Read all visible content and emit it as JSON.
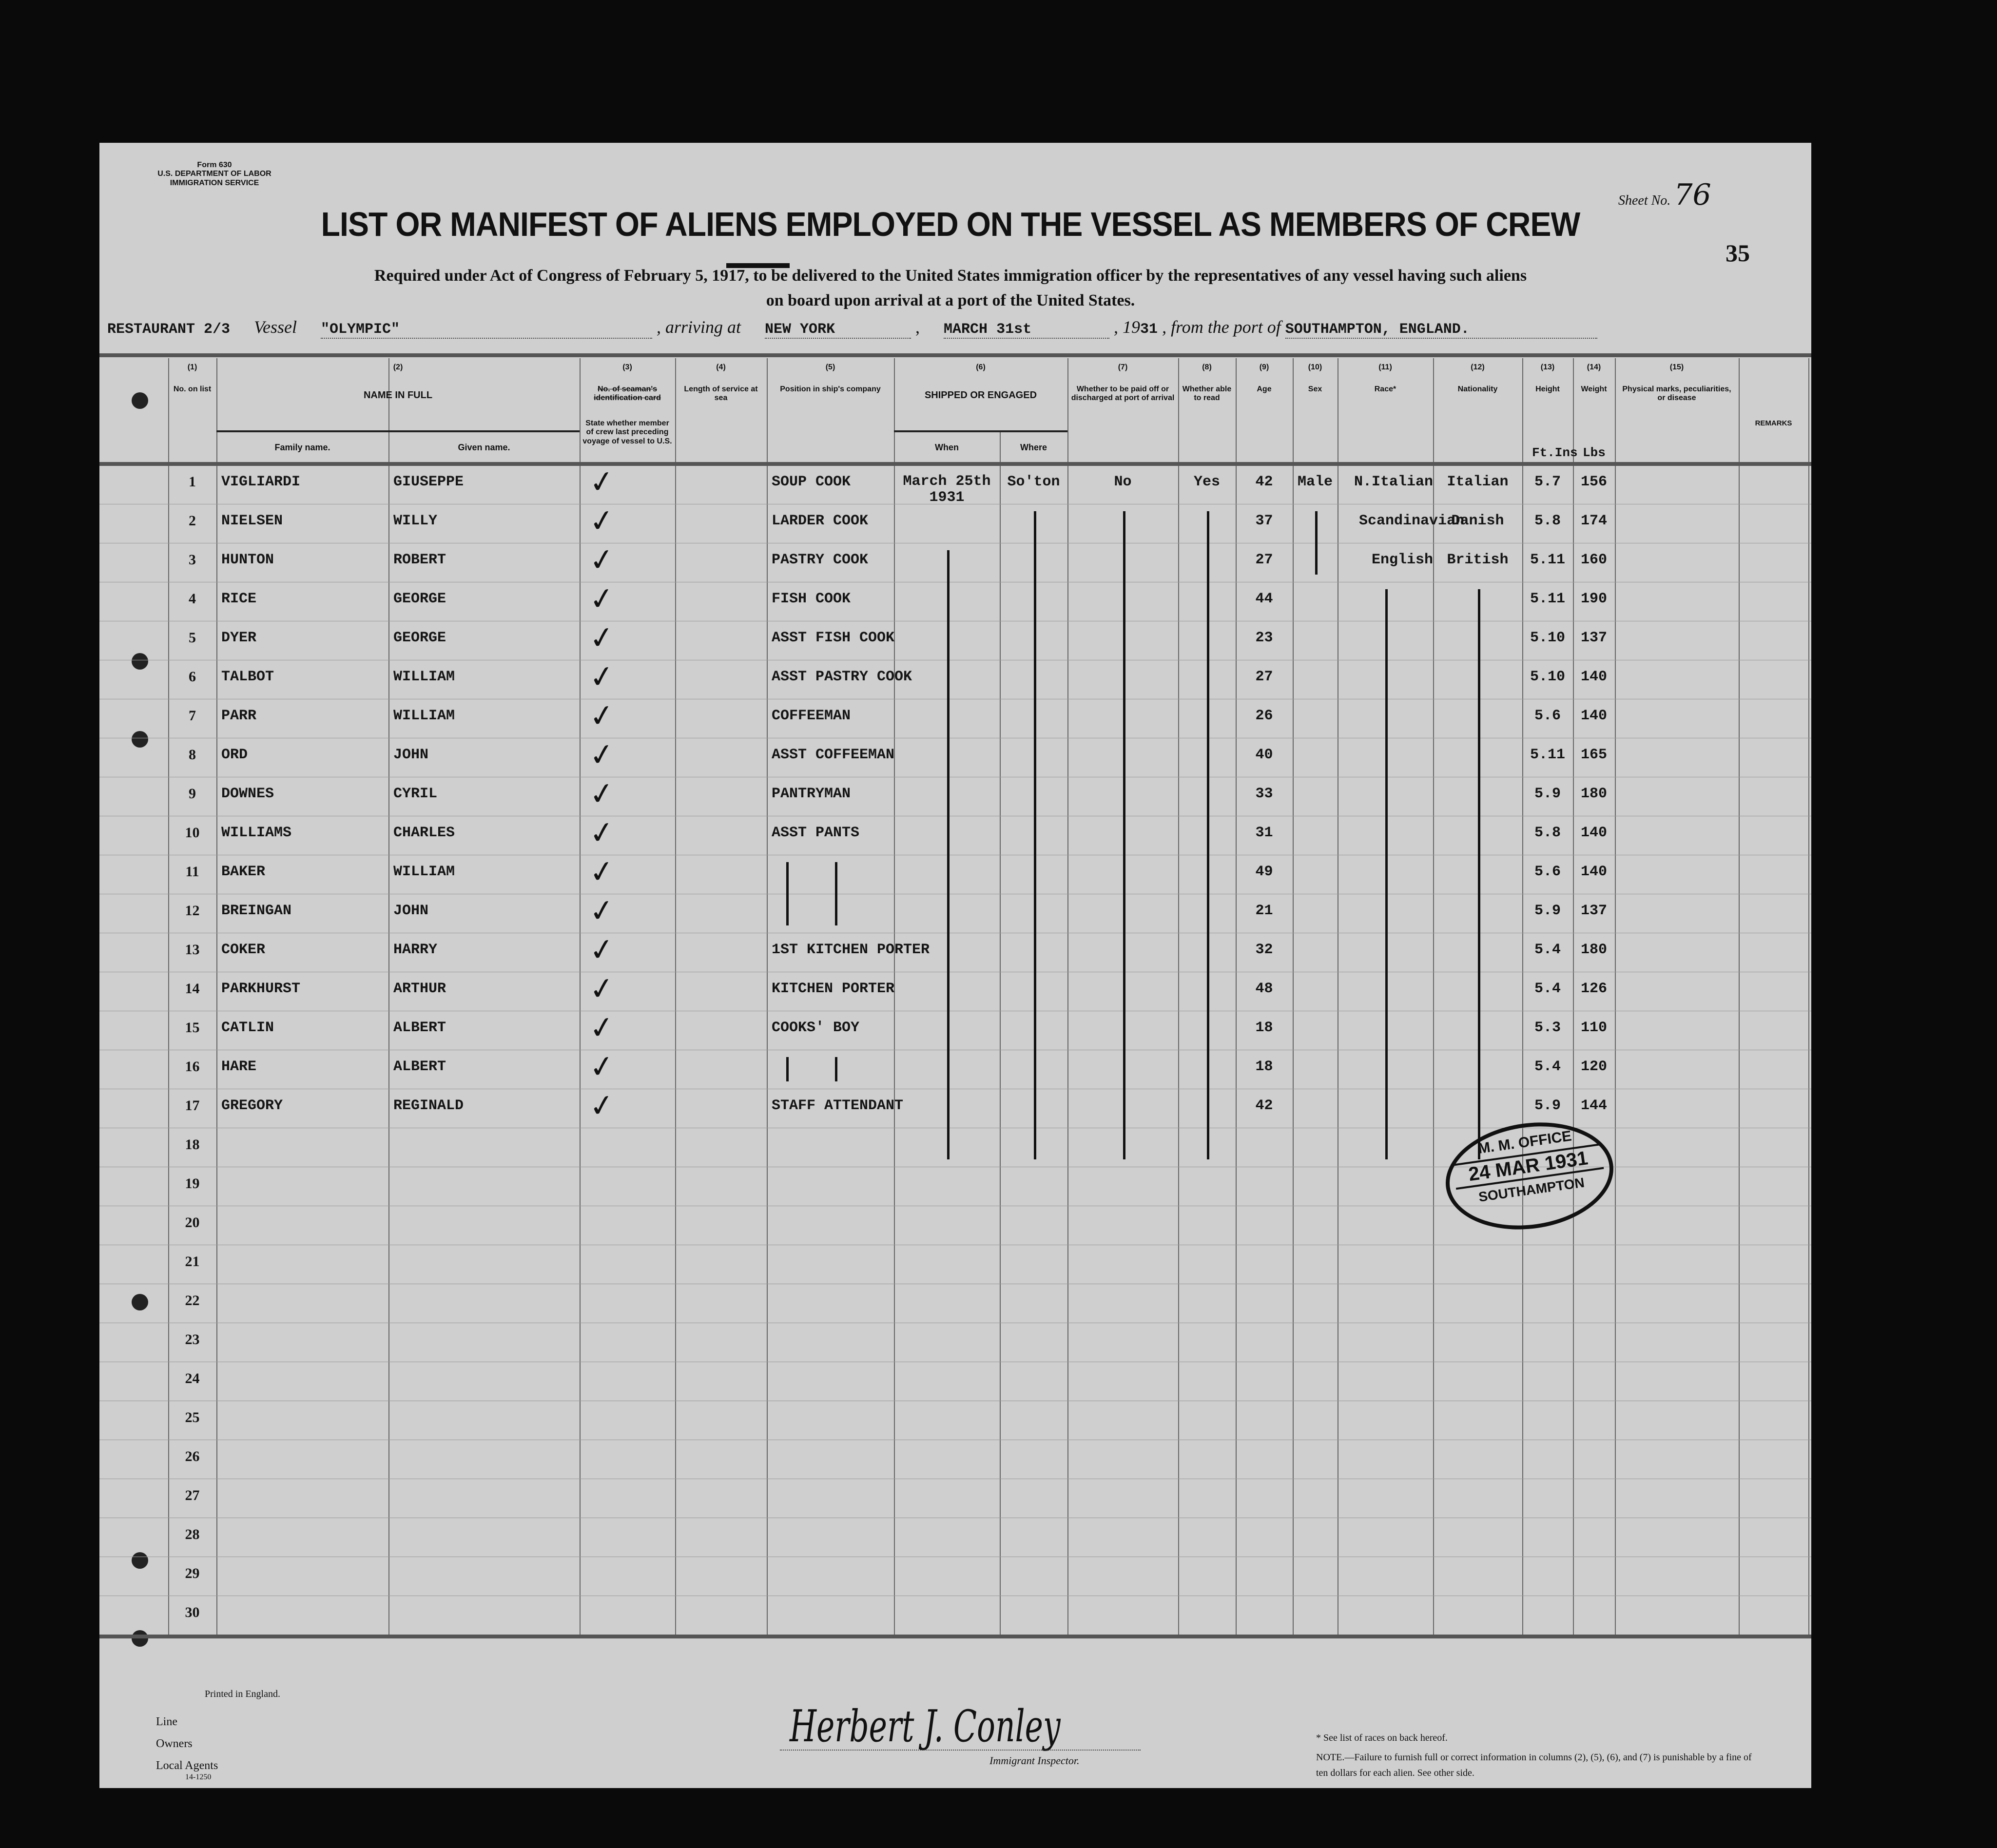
{
  "form": {
    "form_no": "Form 630",
    "department": "U.S. DEPARTMENT OF LABOR",
    "service": "IMMIGRATION SERVICE",
    "title": "LIST OR MANIFEST OF ALIENS EMPLOYED ON THE VESSEL AS MEMBERS OF CREW",
    "subtitle_1": "Required under Act of Congress of February 5, 1917, to be delivered to the United States immigration officer by the representatives of any vessel having such aliens",
    "subtitle_2": "on board upon arrival at a port of the United States.",
    "sheet_label": "Sheet No.",
    "sheet_no": "76",
    "page_stamp": "35"
  },
  "voyage": {
    "department": "RESTAURANT 2/3",
    "vessel_label": "Vessel",
    "vessel": "\"OLYMPIC\"",
    "arriving_label": ", arriving at",
    "port": "NEW YORK",
    "date": "MARCH 31st",
    "year_prefix": ", 19",
    "year": "31",
    "from_label": ", from the port of",
    "from_port": "SOUTHAMPTON, ENGLAND."
  },
  "columns": {
    "c1": {
      "num": "(1)",
      "label": "No. on list"
    },
    "c2": {
      "num": "(2)",
      "label": "NAME IN FULL",
      "family": "Family name.",
      "given": "Given name."
    },
    "c3": {
      "num": "(3)",
      "struck": "No. of seaman's identification card",
      "label": "State whether member of crew last preceding voyage of vessel to U.S."
    },
    "c4": {
      "num": "(4)",
      "label": "Length of service at sea"
    },
    "c5": {
      "num": "(5)",
      "label": "Position in ship's company"
    },
    "c6": {
      "num": "(6)",
      "label": "SHIPPED OR ENGAGED",
      "when": "When",
      "where": "Where"
    },
    "c7": {
      "num": "(7)",
      "label": "Whether to be paid off or discharged at port of arrival"
    },
    "c8": {
      "num": "(8)",
      "label": "Whether able to read"
    },
    "c9": {
      "num": "(9)",
      "label": "Age"
    },
    "c10": {
      "num": "(10)",
      "label": "Sex"
    },
    "c11": {
      "num": "(11)",
      "label": "Race*"
    },
    "c12": {
      "num": "(12)",
      "label": "Nationality"
    },
    "c13": {
      "num": "(13)",
      "label": "Height",
      "unit": "Ft.Ins"
    },
    "c14": {
      "num": "(14)",
      "label": "Weight",
      "unit": "Lbs"
    },
    "c15": {
      "num": "(15)",
      "label": "Physical marks, peculiarities, or disease"
    },
    "c16": {
      "label": "REMARKS"
    }
  },
  "rows": [
    {
      "no": "1",
      "family": "VIGLIARDI",
      "given": "GIUSEPPE",
      "position": "SOUP COOK",
      "when": "March 25th 1931",
      "where": "So'ton",
      "paid_off": "No",
      "read": "Yes",
      "age": "42",
      "sex": "Male",
      "race": "N.Italian",
      "nationality": "Italian",
      "height": "5.7",
      "weight": "156"
    },
    {
      "no": "2",
      "family": "NIELSEN",
      "given": "WILLY",
      "position": "LARDER COOK",
      "age": "37",
      "race": "Scandinavian",
      "nationality": "Danish",
      "height": "5.8",
      "weight": "174"
    },
    {
      "no": "3",
      "family": "HUNTON",
      "given": "ROBERT",
      "position": "PASTRY COOK",
      "age": "27",
      "race": "English",
      "nationality": "British",
      "height": "5.11",
      "weight": "160"
    },
    {
      "no": "4",
      "family": "RICE",
      "given": "GEORGE",
      "position": "FISH COOK",
      "age": "44",
      "height": "5.11",
      "weight": "190"
    },
    {
      "no": "5",
      "family": "DYER",
      "given": "GEORGE",
      "position": "ASST FISH COOK",
      "age": "23",
      "height": "5.10",
      "weight": "137"
    },
    {
      "no": "6",
      "family": "TALBOT",
      "given": "WILLIAM",
      "position": "ASST PASTRY COOK",
      "age": "27",
      "height": "5.10",
      "weight": "140"
    },
    {
      "no": "7",
      "family": "PARR",
      "given": "WILLIAM",
      "position": "COFFEEMAN",
      "age": "26",
      "height": "5.6",
      "weight": "140"
    },
    {
      "no": "8",
      "family": "ORD",
      "given": "JOHN",
      "position": "ASST COFFEEMAN",
      "age": "40",
      "height": "5.11",
      "weight": "165"
    },
    {
      "no": "9",
      "family": "DOWNES",
      "given": "CYRIL",
      "position": "PANTRYMAN",
      "age": "33",
      "height": "5.9",
      "weight": "180"
    },
    {
      "no": "10",
      "family": "WILLIAMS",
      "given": "CHARLES",
      "position": "ASST PANTS",
      "age": "31",
      "height": "5.8",
      "weight": "140"
    },
    {
      "no": "11",
      "family": "BAKER",
      "given": "WILLIAM",
      "age": "49",
      "height": "5.6",
      "weight": "140"
    },
    {
      "no": "12",
      "family": "BREINGAN",
      "given": "JOHN",
      "age": "21",
      "height": "5.9",
      "weight": "137"
    },
    {
      "no": "13",
      "family": "COKER",
      "given": "HARRY",
      "position": "1ST KITCHEN PORTER",
      "age": "32",
      "height": "5.4",
      "weight": "180"
    },
    {
      "no": "14",
      "family": "PARKHURST",
      "given": "ARTHUR",
      "position": "KITCHEN PORTER",
      "age": "48",
      "height": "5.4",
      "weight": "126"
    },
    {
      "no": "15",
      "family": "CATLIN",
      "given": "ALBERT",
      "position": "COOKS' BOY",
      "age": "18",
      "height": "5.3",
      "weight": "110"
    },
    {
      "no": "16",
      "family": "HARE",
      "given": "ALBERT",
      "age": "18",
      "height": "5.4",
      "weight": "120"
    },
    {
      "no": "17",
      "family": "GREGORY",
      "given": "REGINALD",
      "position": "STAFF ATTENDANT",
      "age": "42",
      "height": "5.9",
      "weight": "144"
    },
    {
      "no": "18"
    },
    {
      "no": "19"
    },
    {
      "no": "20"
    },
    {
      "no": "21"
    },
    {
      "no": "22"
    },
    {
      "no": "23"
    },
    {
      "no": "24"
    },
    {
      "no": "25"
    },
    {
      "no": "26"
    },
    {
      "no": "27"
    },
    {
      "no": "28"
    },
    {
      "no": "29"
    },
    {
      "no": "30"
    }
  ],
  "stamp": {
    "top": "M. M. OFFICE",
    "date": "24 MAR 1931",
    "bottom": "SOUTHAMPTON"
  },
  "footer": {
    "printed": "Printed in England.",
    "line_label": "Line",
    "owners_label": "Owners",
    "agents_label": "Local Agents",
    "form_code": "14-1250",
    "signature": "Herbert J. Conley",
    "inspector_label": "Immigrant Inspector.",
    "races_note": "* See list of races on back hereof.",
    "note": "NOTE.—Failure to furnish full or correct information in columns (2), (5), (6), and (7) is punishable by a fine of ten dollars for each alien. See other side."
  }
}
